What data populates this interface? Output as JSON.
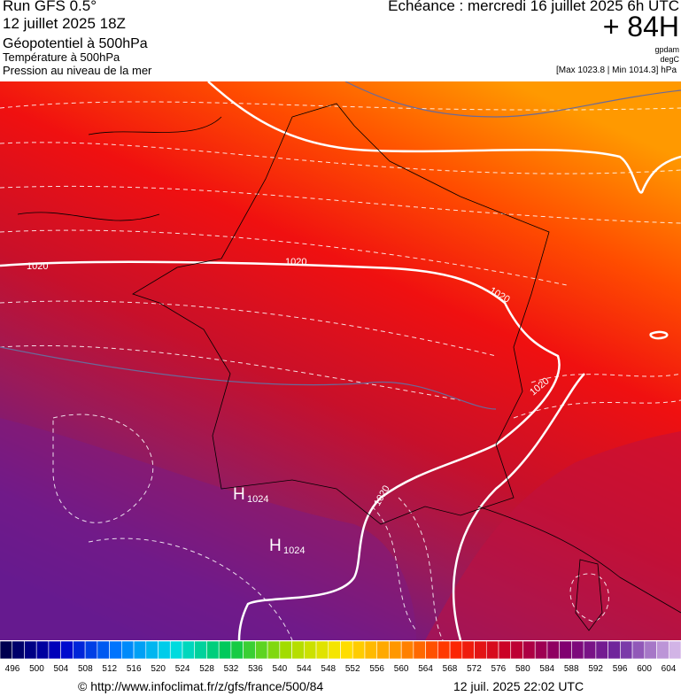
{
  "header": {
    "run": "Run GFS 0.5°",
    "date": "12 juillet 2025 18Z",
    "fields": [
      "Géopotentiel à 500hPa",
      "Température à 500hPa",
      "Pression au niveau de la mer"
    ],
    "echeance": "Echéance : mercredi 16 juillet 2025 6h UTC",
    "offset": "+ 84H",
    "units": [
      "gpdam",
      "degC",
      "[Max 1023.8 | Min 1014.3] hPa"
    ]
  },
  "map": {
    "contour_labels": [
      "1020",
      "1020",
      "1020",
      "1020",
      "1020"
    ],
    "highs": [
      {
        "symbol": "H",
        "value": "1024"
      },
      {
        "symbol": "H",
        "value": "1024"
      }
    ]
  },
  "legend": {
    "labels": [
      496,
      500,
      504,
      508,
      512,
      516,
      520,
      524,
      528,
      532,
      536,
      540,
      544,
      548,
      552,
      556,
      560,
      564,
      568,
      572,
      576,
      580,
      584,
      588,
      592,
      596,
      600,
      604
    ]
  },
  "footer": {
    "url": "© http://www.infoclimat.fr/z/gfs/france/500/84",
    "timestamp": "12 juil. 2025 22:02 UTC"
  }
}
